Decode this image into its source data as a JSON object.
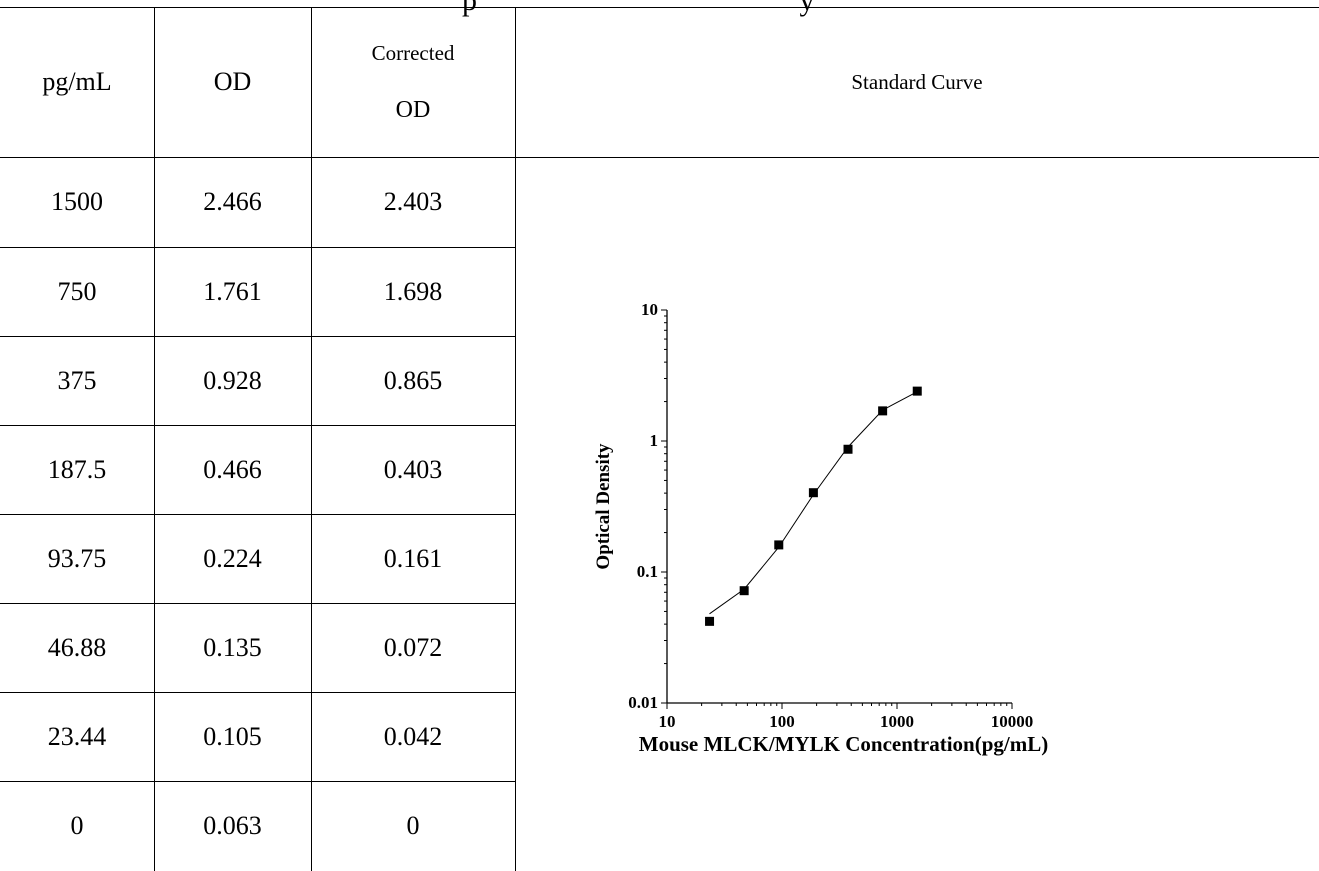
{
  "header_fragment": "p                                           y",
  "table": {
    "headers": [
      "pg/mL",
      "OD"
    ],
    "corrected_header": {
      "line1": "Corrected",
      "line2": "OD"
    },
    "chart_header": "Standard Curve",
    "rows": [
      [
        "1500",
        "2.466",
        "2.403"
      ],
      [
        "750",
        "1.761",
        "1.698"
      ],
      [
        "375",
        "0.928",
        "0.865"
      ],
      [
        "187.5",
        "0.466",
        "0.403"
      ],
      [
        "93.75",
        "0.224",
        "0.161"
      ],
      [
        "46.88",
        "0.135",
        "0.072"
      ],
      [
        "23.44",
        "0.105",
        "0.042"
      ],
      [
        "0",
        "0.063",
        "0"
      ]
    ]
  },
  "chart_data": {
    "type": "scatter",
    "xlabel": "Mouse MLCK/MYLK Concentration(pg/mL)",
    "ylabel": "Optical Density",
    "xscale": "log",
    "yscale": "log",
    "xlim": [
      10,
      10000
    ],
    "ylim": [
      0.01,
      10
    ],
    "x_ticks": [
      "10",
      "100",
      "1000",
      "10000"
    ],
    "y_ticks": [
      "10",
      "1",
      "0.1",
      "0.01"
    ],
    "points": [
      {
        "x": 23.44,
        "y": 0.042
      },
      {
        "x": 46.88,
        "y": 0.072
      },
      {
        "x": 93.75,
        "y": 0.161
      },
      {
        "x": 187.5,
        "y": 0.403
      },
      {
        "x": 375,
        "y": 0.865
      },
      {
        "x": 750,
        "y": 1.698
      },
      {
        "x": 1500,
        "y": 2.403
      }
    ],
    "fit_line": [
      {
        "x": 23.44,
        "y": 0.048
      },
      {
        "x": 46.88,
        "y": 0.074
      },
      {
        "x": 93.75,
        "y": 0.155
      },
      {
        "x": 187.5,
        "y": 0.39
      },
      {
        "x": 375,
        "y": 0.9
      },
      {
        "x": 750,
        "y": 1.72
      },
      {
        "x": 1500,
        "y": 2.38
      }
    ],
    "grid": false,
    "legend": "none"
  }
}
